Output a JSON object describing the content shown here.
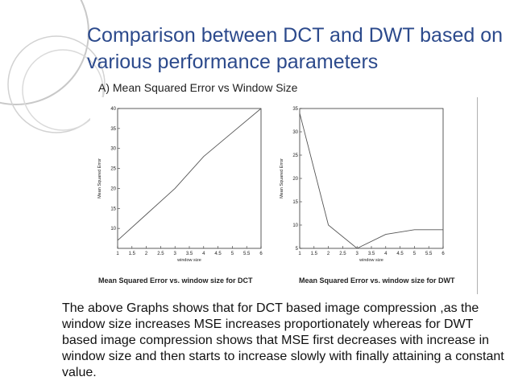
{
  "slide": {
    "title": "Comparison between DCT and DWT based on various performance parameters",
    "subtitle": "A) Mean Squared Error vs Window Size",
    "body": "The above Graphs shows that for DCT based image compression ,as the window size increases MSE increases proportionately whereas for DWT based image compression shows that MSE first decreases with increase in window size and then starts to increase slowly with finally attaining a constant value.",
    "title_color": "#2c4a8c",
    "deco_color": "#c8c8c8"
  },
  "chart_data": [
    {
      "type": "line",
      "title": "Mean Squared Error vs. window size for DCT",
      "xlabel": "window size",
      "ylabel": "Mean Squared Error",
      "xlim": [
        1,
        6
      ],
      "ylim": [
        5,
        40
      ],
      "x_ticks": [
        "1",
        "1.5",
        "2",
        "2.5",
        "3",
        "3.5",
        "4",
        "4.5",
        "5",
        "5.5",
        "6"
      ],
      "y_ticks": [
        "10",
        "15",
        "20",
        "25",
        "30",
        "35",
        "40"
      ],
      "series": [
        {
          "x": [
            1,
            2,
            3,
            4,
            5,
            6
          ],
          "y": [
            7,
            13.5,
            20,
            28,
            34,
            40
          ]
        }
      ],
      "grid": false
    },
    {
      "type": "line",
      "title": "Mean Squared Error vs. window size for DWT",
      "xlabel": "window size",
      "ylabel": "Mean Squared Error",
      "xlim": [
        1,
        6
      ],
      "ylim": [
        5,
        35
      ],
      "x_ticks": [
        "1",
        "1.5",
        "2",
        "2.5",
        "3",
        "3.5",
        "4",
        "4.5",
        "5",
        "5.5",
        "6"
      ],
      "y_ticks": [
        "5",
        "10",
        "15",
        "20",
        "25",
        "30",
        "35"
      ],
      "series": [
        {
          "x": [
            1,
            2,
            3,
            4,
            5,
            6
          ],
          "y": [
            34,
            10,
            5,
            8,
            9,
            9
          ]
        }
      ],
      "grid": false
    }
  ]
}
